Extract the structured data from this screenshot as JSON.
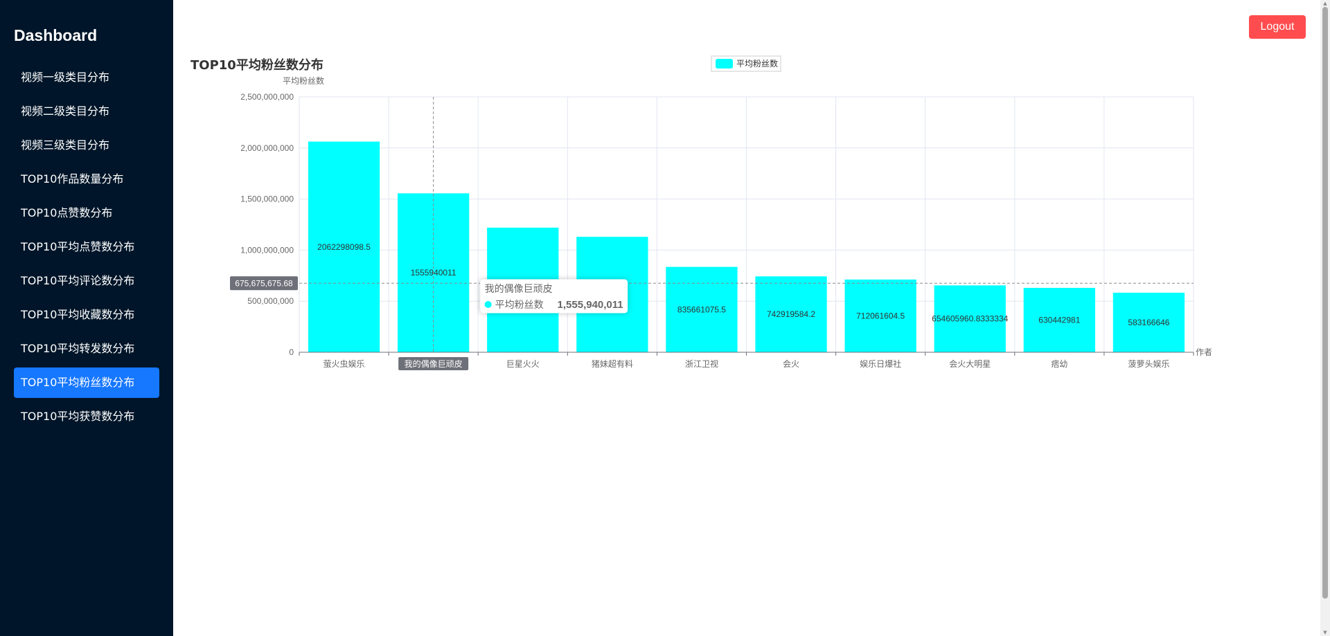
{
  "sidebar": {
    "brand": "Dashboard",
    "items": [
      {
        "label": "视频一级类目分布",
        "active": false
      },
      {
        "label": "视频二级类目分布",
        "active": false
      },
      {
        "label": "视频三级类目分布",
        "active": false
      },
      {
        "label": "TOP10作品数量分布",
        "active": false
      },
      {
        "label": "TOP10点赞数分布",
        "active": false
      },
      {
        "label": "TOP10平均点赞数分布",
        "active": false
      },
      {
        "label": "TOP10平均评论数分布",
        "active": false
      },
      {
        "label": "TOP10平均收藏数分布",
        "active": false
      },
      {
        "label": "TOP10平均转发数分布",
        "active": false
      },
      {
        "label": "TOP10平均粉丝数分布",
        "active": true
      },
      {
        "label": "TOP10平均获赞数分布",
        "active": false
      }
    ]
  },
  "header": {
    "logout_label": "Logout"
  },
  "colors": {
    "sidebar_bg": "#001529",
    "active_item": "#1677ff",
    "logout_bg": "#ff4d4f",
    "bar": "#00ffff"
  },
  "chart_data": {
    "type": "bar",
    "title": "TOP10平均粉丝数分布",
    "ylabel": "平均粉丝数",
    "xlabel": "作者",
    "legend": {
      "label": "平均粉丝数",
      "placement": "top-center"
    },
    "categories": [
      "萤火虫娱乐",
      "我的偶像巨顽皮",
      "巨星火火",
      "猪妹超有料",
      "浙江卫视",
      "会火",
      "娱乐日爆社",
      "会火大明星",
      "痞幼",
      "菠萝头娱乐"
    ],
    "series": [
      {
        "name": "平均粉丝数",
        "values": [
          2062298098.5,
          1555940011,
          1220000000,
          1130000000,
          835661075.5,
          742919584.2,
          712061604.5,
          654605960.8333334,
          630442981,
          583166646
        ],
        "labels": [
          "2062298098.5",
          "1555940011",
          "",
          "",
          "835661075.5",
          "742919584.2",
          "712061604.5",
          "654605960.8333334",
          "630442981",
          "583166646"
        ]
      }
    ],
    "ylim": [
      0,
      2500000000
    ],
    "yticks": [
      "0",
      "500,000,000",
      "1,000,000,000",
      "1,500,000,000",
      "2,000,000,000",
      "2,500,000,000"
    ],
    "grid": true,
    "pointer": {
      "y_value": 675675675.68,
      "y_label": "675,675,675.68",
      "category_index": 1
    },
    "tooltip": {
      "title": "我的偶像巨顽皮",
      "series_name": "平均粉丝数",
      "value_text": "1,555,940,011"
    }
  }
}
